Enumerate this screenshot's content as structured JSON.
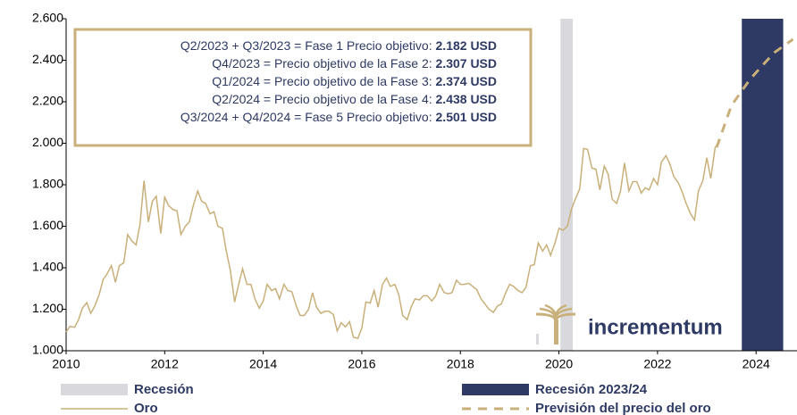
{
  "chart_data": {
    "type": "line",
    "annotation": [
      {
        "text": "Q2/2023 + Q3/2023 = Fase 1 Precio objetivo: ",
        "value": "2.182 USD"
      },
      {
        "text": "Q4/2023 = Precio objetivo de la Fase 2: ",
        "value": "2.307 USD"
      },
      {
        "text": "Q1/2024 = Precio objetivo de la Fase 3: ",
        "value": "2.374 USD"
      },
      {
        "text": "Q2/2024 = Precio objetivo de la Fase 4: ",
        "value": "2.438 USD"
      },
      {
        "text": "Q3/2024 + Q4/2024 = Fase 5 Precio objetivo: ",
        "value": "2.501 USD"
      }
    ],
    "logo": "incrementum",
    "xlim": [
      2010,
      2024.83
    ],
    "xticks": [
      2010,
      2012,
      2014,
      2016,
      2018,
      2020,
      2022,
      2024
    ],
    "ylim": [
      1000,
      2600
    ],
    "yticks": [
      {
        "value": 1000,
        "label": "1.000"
      },
      {
        "value": 1200,
        "label": "1.200"
      },
      {
        "value": 1400,
        "label": "1.400"
      },
      {
        "value": 1600,
        "label": "1.600"
      },
      {
        "value": 1800,
        "label": "1.800"
      },
      {
        "value": 2000,
        "label": "2.000"
      },
      {
        "value": 2200,
        "label": "2.200"
      },
      {
        "value": 2400,
        "label": "2.400"
      },
      {
        "value": 2600,
        "label": "2.600"
      }
    ],
    "recessions": [
      {
        "name": "Recesión",
        "color": "#d9d8dc",
        "start": 2020.03,
        "end": 2020.28
      },
      {
        "name": "Recesión 2023/24",
        "color": "#2e3a63",
        "start": 2023.71,
        "end": 2024.55
      }
    ],
    "series": [
      {
        "name": "Oro",
        "color": "#c9b07a",
        "dashed": false,
        "x": [
          2010.0,
          2010.08,
          2010.17,
          2010.25,
          2010.33,
          2010.42,
          2010.5,
          2010.58,
          2010.67,
          2010.75,
          2010.83,
          2010.92,
          2011.0,
          2011.08,
          2011.17,
          2011.25,
          2011.33,
          2011.42,
          2011.5,
          2011.58,
          2011.67,
          2011.75,
          2011.83,
          2011.92,
          2012.0,
          2012.08,
          2012.17,
          2012.25,
          2012.33,
          2012.42,
          2012.5,
          2012.58,
          2012.67,
          2012.75,
          2012.83,
          2012.92,
          2013.0,
          2013.08,
          2013.17,
          2013.25,
          2013.33,
          2013.42,
          2013.5,
          2013.58,
          2013.67,
          2013.75,
          2013.83,
          2013.92,
          2014.0,
          2014.08,
          2014.17,
          2014.25,
          2014.33,
          2014.42,
          2014.5,
          2014.58,
          2014.67,
          2014.75,
          2014.83,
          2014.92,
          2015.0,
          2015.08,
          2015.17,
          2015.25,
          2015.33,
          2015.42,
          2015.5,
          2015.58,
          2015.67,
          2015.75,
          2015.83,
          2015.92,
          2016.0,
          2016.08,
          2016.17,
          2016.25,
          2016.33,
          2016.42,
          2016.5,
          2016.58,
          2016.67,
          2016.75,
          2016.83,
          2016.92,
          2017.0,
          2017.08,
          2017.17,
          2017.25,
          2017.33,
          2017.42,
          2017.5,
          2017.58,
          2017.67,
          2017.75,
          2017.83,
          2017.92,
          2018.0,
          2018.08,
          2018.17,
          2018.25,
          2018.33,
          2018.42,
          2018.5,
          2018.58,
          2018.67,
          2018.75,
          2018.83,
          2018.92,
          2019.0,
          2019.08,
          2019.17,
          2019.25,
          2019.33,
          2019.42,
          2019.5,
          2019.58,
          2019.67,
          2019.75,
          2019.83,
          2019.92,
          2020.0,
          2020.08,
          2020.17,
          2020.25,
          2020.33,
          2020.42,
          2020.5,
          2020.58,
          2020.67,
          2020.75,
          2020.83,
          2020.92,
          2021.0,
          2021.08,
          2021.17,
          2021.25,
          2021.33,
          2021.42,
          2021.5,
          2021.58,
          2021.67,
          2021.75,
          2021.83,
          2021.92,
          2022.0,
          2022.08,
          2022.17,
          2022.25,
          2022.33,
          2022.42,
          2022.5,
          2022.58,
          2022.67,
          2022.75,
          2022.83,
          2022.92,
          2023.0,
          2023.08,
          2023.17,
          2023.25
        ],
        "values": [
          1090,
          1118,
          1113,
          1148,
          1205,
          1232,
          1180,
          1215,
          1271,
          1343,
          1370,
          1410,
          1330,
          1410,
          1424,
          1560,
          1530,
          1510,
          1610,
          1820,
          1620,
          1720,
          1745,
          1565,
          1740,
          1700,
          1680,
          1675,
          1560,
          1600,
          1620,
          1700,
          1770,
          1720,
          1710,
          1660,
          1670,
          1600,
          1590,
          1480,
          1390,
          1235,
          1320,
          1395,
          1320,
          1320,
          1250,
          1205,
          1240,
          1320,
          1290,
          1300,
          1250,
          1320,
          1290,
          1285,
          1215,
          1170,
          1170,
          1200,
          1280,
          1210,
          1180,
          1190,
          1190,
          1175,
          1095,
          1135,
          1115,
          1140,
          1065,
          1060,
          1110,
          1235,
          1230,
          1290,
          1210,
          1320,
          1350,
          1310,
          1320,
          1270,
          1170,
          1150,
          1210,
          1250,
          1245,
          1265,
          1265,
          1240,
          1265,
          1320,
          1280,
          1275,
          1280,
          1340,
          1320,
          1320,
          1325,
          1310,
          1295,
          1250,
          1225,
          1200,
          1185,
          1215,
          1225,
          1280,
          1320,
          1310,
          1290,
          1280,
          1305,
          1410,
          1415,
          1520,
          1480,
          1510,
          1460,
          1520,
          1590,
          1580,
          1600,
          1680,
          1730,
          1780,
          1975,
          1970,
          1880,
          1875,
          1775,
          1890,
          1850,
          1730,
          1710,
          1770,
          1905,
          1770,
          1815,
          1815,
          1760,
          1785,
          1775,
          1830,
          1800,
          1910,
          1940,
          1900,
          1840,
          1810,
          1765,
          1710,
          1660,
          1630,
          1770,
          1820,
          1930,
          1830,
          1980,
          2000
        ]
      },
      {
        "name": "Previsión del precio del oro",
        "color": "#c9b07a",
        "dashed": true,
        "x": [
          2023.2,
          2023.5,
          2023.875,
          2024.125,
          2024.375,
          2024.75
        ],
        "values": [
          1980,
          2182,
          2307,
          2374,
          2438,
          2501
        ]
      }
    ]
  }
}
